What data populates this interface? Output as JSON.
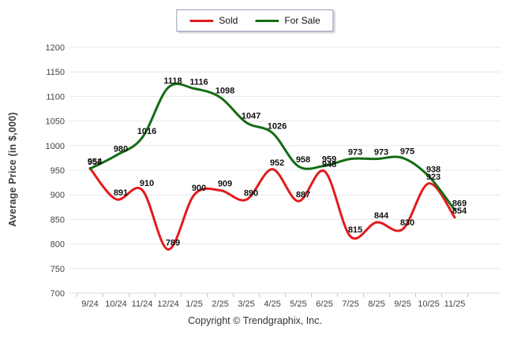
{
  "legend": {
    "items": [
      {
        "label": "Sold",
        "color": "#e31a1c"
      },
      {
        "label": "For Sale",
        "color": "#146c14"
      }
    ]
  },
  "chart_data": {
    "type": "line",
    "title": "",
    "xlabel": "",
    "ylabel": "Average Price (in $,000)",
    "categories": [
      "9/24",
      "10/24",
      "11/24",
      "12/24",
      "1/25",
      "2/25",
      "3/25",
      "4/25",
      "5/25",
      "6/25",
      "7/25",
      "8/25",
      "9/25",
      "10/25",
      "11/25"
    ],
    "series": [
      {
        "name": "Sold",
        "color": "#e31a1c",
        "values": [
          954,
          891,
          910,
          789,
          900,
          909,
          890,
          952,
          887,
          948,
          815,
          844,
          830,
          923,
          854
        ]
      },
      {
        "name": "For Sale",
        "color": "#146c14",
        "values": [
          953,
          980,
          1016,
          1118,
          1116,
          1098,
          1047,
          1026,
          958,
          959,
          973,
          973,
          975,
          938,
          869
        ]
      }
    ],
    "ylim": [
      700,
      1200
    ],
    "yticks": [
      700,
      750,
      800,
      850,
      900,
      950,
      1000,
      1050,
      1100,
      1150,
      1200
    ],
    "grid": true,
    "legend_position": "top",
    "data_labels": true
  },
  "footer": {
    "copyright": "Copyright © Trendgraphix, Inc."
  }
}
